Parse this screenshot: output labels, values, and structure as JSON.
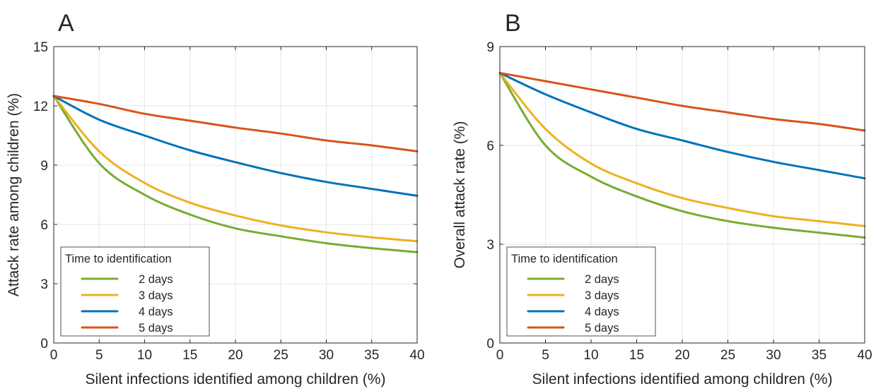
{
  "chart_data": [
    {
      "panel_label": "A",
      "type": "line",
      "xlabel": "Silent infections identified among children (%)",
      "ylabel": "Attack rate among children (%)",
      "xlim": [
        0,
        40
      ],
      "ylim": [
        0,
        15
      ],
      "xticks": [
        0,
        5,
        10,
        15,
        20,
        25,
        30,
        35,
        40
      ],
      "yticks": [
        0,
        3,
        6,
        9,
        12,
        15
      ],
      "grid": true,
      "legend_placement": "bottom-left",
      "legend_title": "Time to identification",
      "x": [
        0,
        5,
        10,
        15,
        20,
        25,
        30,
        35,
        40
      ],
      "series": [
        {
          "name": "2 days",
          "color": "#77ac30",
          "values": [
            12.5,
            9.1,
            7.5,
            6.5,
            5.8,
            5.4,
            5.05,
            4.8,
            4.6
          ]
        },
        {
          "name": "3 days",
          "color": "#edb120",
          "values": [
            12.5,
            9.7,
            8.1,
            7.1,
            6.45,
            5.95,
            5.6,
            5.35,
            5.15
          ]
        },
        {
          "name": "4 days",
          "color": "#0072bd",
          "values": [
            12.5,
            11.3,
            10.5,
            9.75,
            9.15,
            8.6,
            8.15,
            7.8,
            7.45
          ]
        },
        {
          "name": "5 days",
          "color": "#d95319",
          "values": [
            12.5,
            12.1,
            11.6,
            11.25,
            10.9,
            10.6,
            10.25,
            10.0,
            9.7
          ]
        }
      ]
    },
    {
      "panel_label": "B",
      "type": "line",
      "xlabel": "Silent infections identified among children (%)",
      "ylabel": "Overall attack rate (%)",
      "xlim": [
        0,
        40
      ],
      "ylim": [
        0,
        9
      ],
      "xticks": [
        0,
        5,
        10,
        15,
        20,
        25,
        30,
        35,
        40
      ],
      "yticks": [
        0,
        3,
        6,
        9
      ],
      "grid": true,
      "legend_placement": "bottom-left",
      "legend_title": "Time to identification",
      "x": [
        0,
        5,
        10,
        15,
        20,
        25,
        30,
        35,
        40
      ],
      "series": [
        {
          "name": "2 days",
          "color": "#77ac30",
          "values": [
            8.2,
            6.0,
            5.05,
            4.45,
            4.0,
            3.7,
            3.5,
            3.35,
            3.2
          ]
        },
        {
          "name": "3 days",
          "color": "#edb120",
          "values": [
            8.2,
            6.5,
            5.45,
            4.85,
            4.4,
            4.1,
            3.85,
            3.7,
            3.55
          ]
        },
        {
          "name": "4 days",
          "color": "#0072bd",
          "values": [
            8.2,
            7.55,
            7.0,
            6.5,
            6.15,
            5.8,
            5.5,
            5.25,
            5.0
          ]
        },
        {
          "name": "5 days",
          "color": "#d95319",
          "values": [
            8.2,
            7.95,
            7.7,
            7.45,
            7.2,
            7.0,
            6.8,
            6.65,
            6.45
          ]
        }
      ]
    }
  ]
}
